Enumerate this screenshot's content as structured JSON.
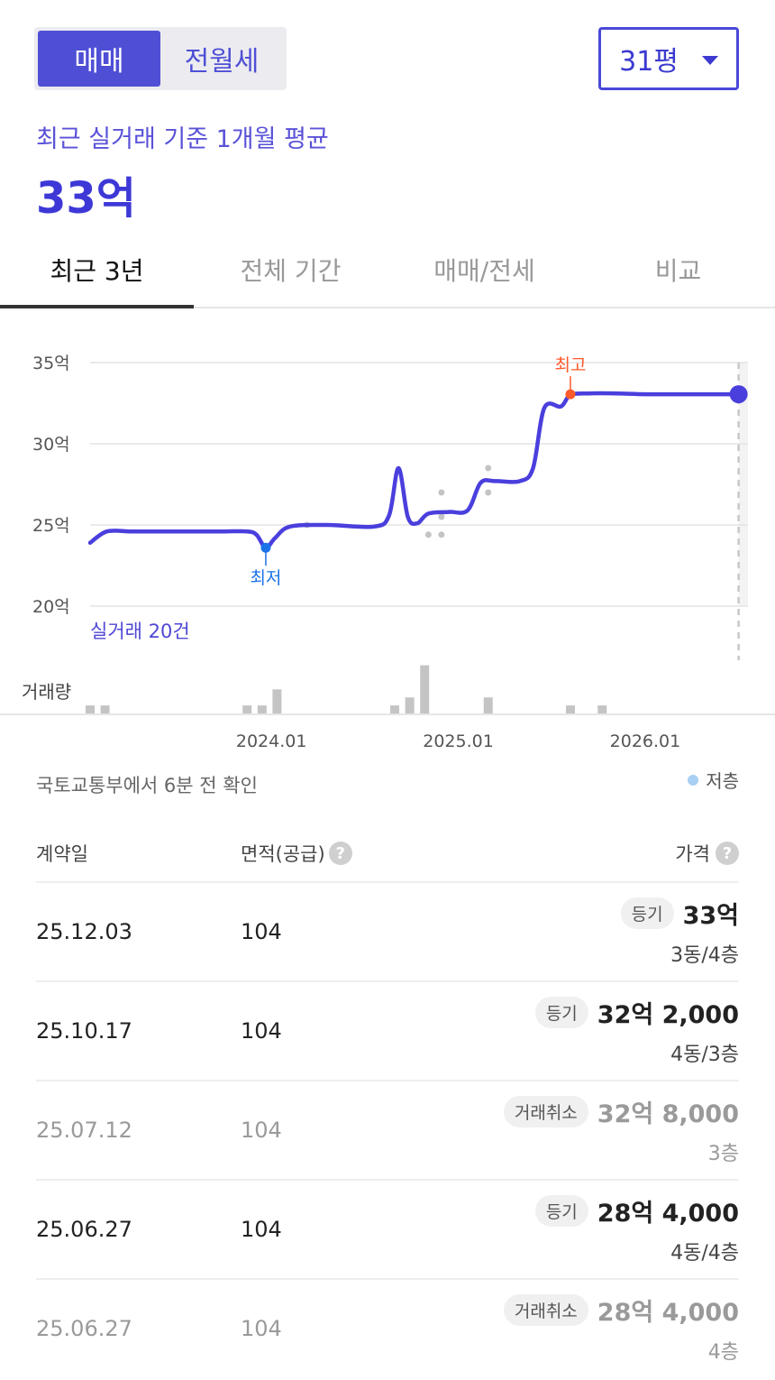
{
  "toggle": {
    "sale_label": "매매",
    "rent_label": "전월세"
  },
  "area_select": {
    "value": "31평"
  },
  "summary": {
    "subtitle": "최근 실거래 기준 1개월 평균",
    "price": "33억"
  },
  "tabs": [
    {
      "label": "최근 3년",
      "active": true
    },
    {
      "label": "전체 기간",
      "active": false
    },
    {
      "label": "매매/전세",
      "active": false
    },
    {
      "label": "비교",
      "active": false
    }
  ],
  "chart_data": {
    "type": "line",
    "ylim": [
      20,
      35
    ],
    "y_ticks": [
      35,
      30,
      25,
      20
    ],
    "y_tick_labels": [
      "35억",
      "30억",
      "25억",
      "20억"
    ],
    "x_tick_labels": [
      "2024.01",
      "2025.01",
      "2026.01"
    ],
    "x_ticks": [
      2024.0,
      2025.0,
      2026.0
    ],
    "xlim": [
      2023.03,
      2026.55
    ],
    "line_points": [
      [
        2023.03,
        23.9
      ],
      [
        2023.12,
        24.6
      ],
      [
        2023.25,
        24.6
      ],
      [
        2023.4,
        24.6
      ],
      [
        2023.6,
        24.6
      ],
      [
        2023.75,
        24.6
      ],
      [
        2023.87,
        24.6
      ],
      [
        2023.92,
        24.4
      ],
      [
        2023.97,
        23.6
      ],
      [
        2024.02,
        24.2
      ],
      [
        2024.1,
        24.9
      ],
      [
        2024.3,
        25.0
      ],
      [
        2024.55,
        24.9
      ],
      [
        2024.63,
        25.6
      ],
      [
        2024.68,
        28.5
      ],
      [
        2024.73,
        25.5
      ],
      [
        2024.78,
        25.1
      ],
      [
        2024.84,
        25.7
      ],
      [
        2024.95,
        25.8
      ],
      [
        2025.05,
        25.9
      ],
      [
        2025.12,
        27.6
      ],
      [
        2025.2,
        27.7
      ],
      [
        2025.33,
        27.7
      ],
      [
        2025.4,
        28.5
      ],
      [
        2025.46,
        32.2
      ],
      [
        2025.55,
        32.3
      ],
      [
        2025.6,
        33.0
      ],
      [
        2025.7,
        33.1
      ],
      [
        2025.85,
        33.1
      ],
      [
        2026.0,
        33.05
      ],
      [
        2026.2,
        33.05
      ],
      [
        2026.35,
        33.05
      ],
      [
        2026.5,
        33.05
      ]
    ],
    "current_point": [
      2026.5,
      33.05
    ],
    "min_point": {
      "x": 1,
      "y": 23.6,
      "label": "최저",
      "x_year": 2023.97
    },
    "max_point": {
      "y": 33.05,
      "label": "최고",
      "x_year": 2025.6
    },
    "scatter_points": [
      [
        2024.19,
        25.0
      ],
      [
        2024.84,
        24.4
      ],
      [
        2024.91,
        24.4
      ],
      [
        2024.91,
        25.5
      ],
      [
        2024.91,
        27.0
      ],
      [
        2025.16,
        27.0
      ],
      [
        2025.16,
        28.5
      ]
    ],
    "forecast_region_start": 2026.5,
    "volume_bars": [
      {
        "x": 2023.03,
        "v": 1
      },
      {
        "x": 2023.11,
        "v": 1
      },
      {
        "x": 2023.87,
        "v": 1
      },
      {
        "x": 2023.95,
        "v": 1
      },
      {
        "x": 2024.03,
        "v": 3
      },
      {
        "x": 2024.66,
        "v": 1
      },
      {
        "x": 2024.74,
        "v": 2
      },
      {
        "x": 2024.82,
        "v": 6
      },
      {
        "x": 2025.16,
        "v": 2
      },
      {
        "x": 2025.6,
        "v": 1
      },
      {
        "x": 2025.77,
        "v": 1
      }
    ],
    "deals_note": "실거래 20건",
    "volume_label": "거래량",
    "colors": {
      "line": "#4a3fdd",
      "min": "#1a73e8",
      "max": "#ff5a2a",
      "scatter": "#c4c4c4",
      "bar": "#c4c4c4",
      "forecast": "#f3f3f3"
    }
  },
  "source": {
    "text": "국토교통부에서 6분 전 확인",
    "legend_label": "저층"
  },
  "table": {
    "headers": {
      "date": "계약일",
      "area": "면적(공급)",
      "price": "가격",
      "help_icon": "?"
    },
    "rows": [
      {
        "date": "25.12.03",
        "area": "104",
        "badge": "등기",
        "price": "33억",
        "floor": "3동/4층",
        "cancelled": false
      },
      {
        "date": "25.10.17",
        "area": "104",
        "badge": "등기",
        "price": "32억 2,000",
        "floor": "4동/3층",
        "cancelled": false
      },
      {
        "date": "25.07.12",
        "area": "104",
        "badge": "거래취소",
        "price": "32억 8,000",
        "floor": "3층",
        "cancelled": true
      },
      {
        "date": "25.06.27",
        "area": "104",
        "badge": "등기",
        "price": "28억 4,000",
        "floor": "4동/4층",
        "cancelled": false
      },
      {
        "date": "25.06.27",
        "area": "104",
        "badge": "거래취소",
        "price": "28억 4,000",
        "floor": "4층",
        "cancelled": true
      }
    ]
  }
}
